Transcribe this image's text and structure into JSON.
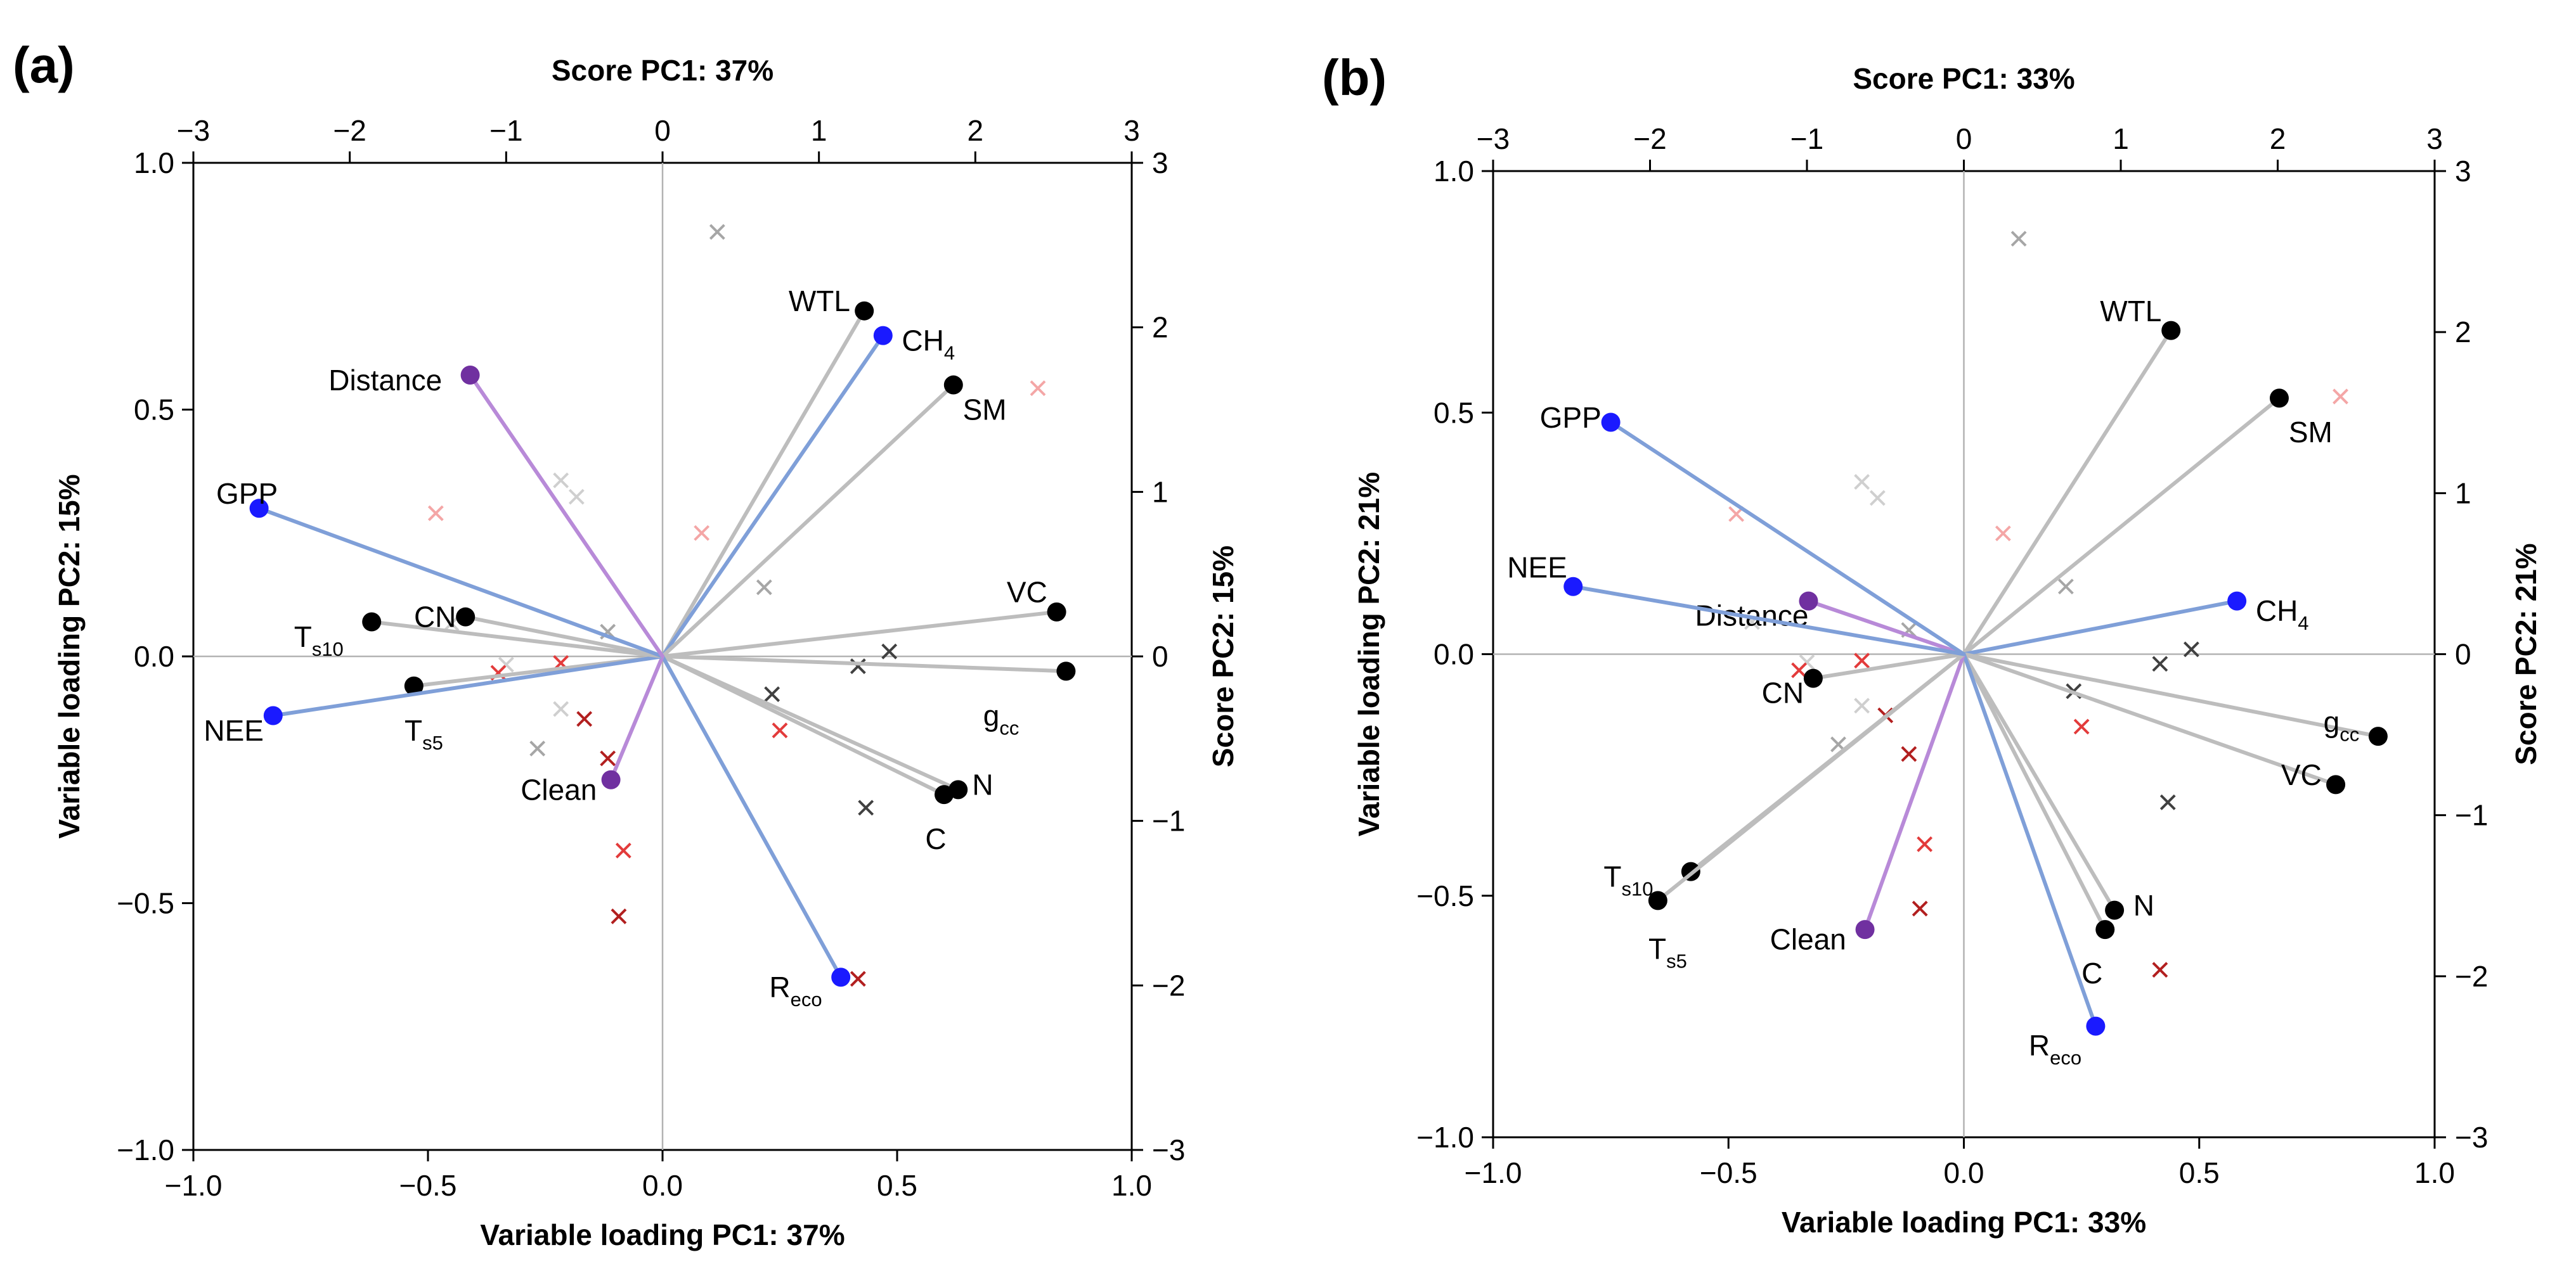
{
  "colors": {
    "env": "#bdbdbd",
    "flux": "#7f9fd8",
    "mgmt": "#b88ad8",
    "dot_env": "#000000",
    "dot_flux": "#1a1aff",
    "dot_mgmt": "#7030a0",
    "score_grey": "#a6a6a6",
    "score_black": "#404040",
    "score_pink": "#f4a6a6",
    "score_red": "#e33b3b",
    "score_darkred": "#b21f1f",
    "score_lightgrey": "#cfcfcf"
  },
  "chart_data": [
    {
      "type": "biplot",
      "panel_label": "(a)",
      "top_title": "Score PC1: 37%",
      "bottom_title": "Variable loading PC1: 37%",
      "left_title": "Variable loading PC2: 15%",
      "right_title": "Score PC2: 15%",
      "loading_xlim": [
        -1.0,
        1.0
      ],
      "loading_ylim": [
        -1.0,
        1.0
      ],
      "score_xlim": [
        -3,
        3
      ],
      "score_ylim": [
        -3,
        3
      ],
      "loading_ticks": [
        "−1.0",
        "−0.5",
        "0.0",
        "0.5",
        "1.0"
      ],
      "loading_tick_values": [
        -1.0,
        -0.5,
        0.0,
        0.5,
        1.0
      ],
      "score_ticks": [
        "−3",
        "−2",
        "−1",
        "0",
        "1",
        "2",
        "3"
      ],
      "score_tick_values": [
        -3,
        -2,
        -1,
        0,
        1,
        2,
        3
      ],
      "vectors": [
        {
          "label": "WTL",
          "sub": "",
          "x": 0.43,
          "y": 0.7,
          "group": "env",
          "anchor": "end",
          "lx": -0.03,
          "ly": 0.02
        },
        {
          "label": "CH",
          "sub": "4",
          "x": 0.47,
          "y": 0.65,
          "group": "flux",
          "anchor": "start",
          "lx": 0.04,
          "ly": -0.01
        },
        {
          "label": "SM",
          "sub": "",
          "x": 0.62,
          "y": 0.55,
          "group": "env",
          "anchor": "start",
          "lx": 0.02,
          "ly": -0.05
        },
        {
          "label": "VC",
          "sub": "",
          "x": 0.84,
          "y": 0.09,
          "group": "env",
          "anchor": "end",
          "lx": -0.02,
          "ly": 0.04
        },
        {
          "label": "g",
          "sub": "cc",
          "x": 0.86,
          "y": -0.03,
          "group": "env",
          "anchor": "end",
          "lx": -0.1,
          "ly": -0.09
        },
        {
          "label": "N",
          "sub": "",
          "x": 0.63,
          "y": -0.27,
          "group": "env",
          "anchor": "start",
          "lx": 0.03,
          "ly": 0.01
        },
        {
          "label": "C",
          "sub": "",
          "x": 0.6,
          "y": -0.28,
          "group": "env",
          "anchor": "start",
          "lx": -0.04,
          "ly": -0.09
        },
        {
          "label": "R",
          "sub": "eco",
          "x": 0.38,
          "y": -0.65,
          "group": "flux",
          "anchor": "end",
          "lx": -0.04,
          "ly": -0.02
        },
        {
          "label": "Clean",
          "sub": "",
          "x": -0.11,
          "y": -0.25,
          "group": "mgmt",
          "anchor": "end",
          "lx": -0.03,
          "ly": -0.02
        },
        {
          "label": "T",
          "sub": "s5",
          "x": -0.53,
          "y": -0.06,
          "group": "env",
          "anchor": "start",
          "lx": -0.02,
          "ly": -0.09
        },
        {
          "label": "NEE",
          "sub": "",
          "x": -0.83,
          "y": -0.12,
          "group": "flux",
          "anchor": "end",
          "lx": -0.02,
          "ly": -0.03
        },
        {
          "label": "T",
          "sub": "s10",
          "x": -0.62,
          "y": 0.07,
          "group": "env",
          "anchor": "end",
          "lx": -0.06,
          "ly": -0.03
        },
        {
          "label": "CN",
          "sub": "",
          "x": -0.42,
          "y": 0.08,
          "group": "env",
          "anchor": "end",
          "lx": -0.02,
          "ly": 0.0
        },
        {
          "label": "GPP",
          "sub": "",
          "x": -0.86,
          "y": 0.3,
          "group": "flux",
          "anchor": "end",
          "lx": 0.04,
          "ly": 0.03
        },
        {
          "label": "Distance",
          "sub": "",
          "x": -0.41,
          "y": 0.57,
          "group": "mgmt",
          "anchor": "end",
          "lx": -0.06,
          "ly": -0.01
        }
      ],
      "scores": [
        {
          "x": 0.35,
          "y": 2.58,
          "c": "score_grey"
        },
        {
          "x": -0.65,
          "y": 1.07,
          "c": "score_lightgrey"
        },
        {
          "x": -0.55,
          "y": 0.97,
          "c": "score_lightgrey"
        },
        {
          "x": -1.45,
          "y": 0.87,
          "c": "score_pink"
        },
        {
          "x": 0.25,
          "y": 0.75,
          "c": "score_pink"
        },
        {
          "x": 0.65,
          "y": 0.42,
          "c": "score_grey"
        },
        {
          "x": 2.4,
          "y": 1.63,
          "c": "score_pink"
        },
        {
          "x": -0.35,
          "y": 0.15,
          "c": "score_grey"
        },
        {
          "x": -1.35,
          "y": 0.2,
          "c": "score_lightgrey"
        },
        {
          "x": -1.0,
          "y": -0.05,
          "c": "score_lightgrey"
        },
        {
          "x": -1.05,
          "y": -0.1,
          "c": "score_red"
        },
        {
          "x": -0.65,
          "y": -0.32,
          "c": "score_lightgrey"
        },
        {
          "x": -0.65,
          "y": -0.04,
          "c": "score_red"
        },
        {
          "x": -0.8,
          "y": -0.56,
          "c": "score_grey"
        },
        {
          "x": -0.5,
          "y": -0.38,
          "c": "score_darkred"
        },
        {
          "x": -0.35,
          "y": -0.62,
          "c": "score_darkred"
        },
        {
          "x": 0.75,
          "y": -0.45,
          "c": "score_red"
        },
        {
          "x": 0.7,
          "y": -0.23,
          "c": "score_black"
        },
        {
          "x": 1.25,
          "y": -0.06,
          "c": "score_black"
        },
        {
          "x": 1.45,
          "y": 0.03,
          "c": "score_black"
        },
        {
          "x": 1.3,
          "y": -0.92,
          "c": "score_black"
        },
        {
          "x": -0.25,
          "y": -1.18,
          "c": "score_red"
        },
        {
          "x": -0.28,
          "y": -1.58,
          "c": "score_darkred"
        },
        {
          "x": 1.25,
          "y": -1.96,
          "c": "score_darkred"
        }
      ]
    },
    {
      "type": "biplot",
      "panel_label": "(b)",
      "top_title": "Score PC1: 33%",
      "bottom_title": "Variable loading PC1: 33%",
      "left_title": "Variable loading PC2: 21%",
      "right_title": "Score PC2: 21%",
      "loading_xlim": [
        -1.0,
        1.0
      ],
      "loading_ylim": [
        -1.0,
        1.0
      ],
      "score_xlim": [
        -3,
        3
      ],
      "score_ylim": [
        -3,
        3
      ],
      "loading_ticks": [
        "−1.0",
        "−0.5",
        "0.0",
        "0.5",
        "1.0"
      ],
      "loading_tick_values": [
        -1.0,
        -0.5,
        0.0,
        0.5,
        1.0
      ],
      "score_ticks": [
        "−3",
        "−2",
        "−1",
        "0",
        "1",
        "2",
        "3"
      ],
      "score_tick_values": [
        -3,
        -2,
        -1,
        0,
        1,
        2,
        3
      ],
      "vectors": [
        {
          "label": "WTL",
          "sub": "",
          "x": 0.44,
          "y": 0.67,
          "group": "env",
          "anchor": "end",
          "lx": -0.02,
          "ly": 0.04
        },
        {
          "label": "SM",
          "sub": "",
          "x": 0.67,
          "y": 0.53,
          "group": "env",
          "anchor": "start",
          "lx": 0.02,
          "ly": -0.07
        },
        {
          "label": "CH",
          "sub": "4",
          "x": 0.58,
          "y": 0.11,
          "group": "flux",
          "anchor": "start",
          "lx": 0.04,
          "ly": -0.02
        },
        {
          "label": "g",
          "sub": "cc",
          "x": 0.88,
          "y": -0.17,
          "group": "env",
          "anchor": "end",
          "lx": -0.04,
          "ly": 0.03
        },
        {
          "label": "VC",
          "sub": "",
          "x": 0.79,
          "y": -0.27,
          "group": "env",
          "anchor": "end",
          "lx": -0.03,
          "ly": 0.02
        },
        {
          "label": "N",
          "sub": "",
          "x": 0.32,
          "y": -0.53,
          "group": "env",
          "anchor": "start",
          "lx": 0.04,
          "ly": 0.01
        },
        {
          "label": "C",
          "sub": "",
          "x": 0.3,
          "y": -0.57,
          "group": "env",
          "anchor": "start",
          "lx": -0.05,
          "ly": -0.09
        },
        {
          "label": "R",
          "sub": "eco",
          "x": 0.28,
          "y": -0.77,
          "group": "flux",
          "anchor": "end",
          "lx": -0.03,
          "ly": -0.04
        },
        {
          "label": "Clean",
          "sub": "",
          "x": -0.21,
          "y": -0.57,
          "group": "mgmt",
          "anchor": "end",
          "lx": -0.04,
          "ly": -0.02
        },
        {
          "label": "T",
          "sub": "s10",
          "x": -0.58,
          "y": -0.45,
          "group": "env",
          "anchor": "end",
          "lx": -0.08,
          "ly": -0.01
        },
        {
          "label": "T",
          "sub": "s5",
          "x": -0.65,
          "y": -0.51,
          "group": "env",
          "anchor": "start",
          "lx": -0.02,
          "ly": -0.1
        },
        {
          "label": "CN",
          "sub": "",
          "x": -0.32,
          "y": -0.05,
          "group": "env",
          "anchor": "end",
          "lx": -0.02,
          "ly": -0.03
        },
        {
          "label": "Distance",
          "sub": "",
          "x": -0.33,
          "y": 0.11,
          "group": "mgmt",
          "anchor": "end",
          "lx": 0.0,
          "ly": -0.03
        },
        {
          "label": "NEE",
          "sub": "",
          "x": -0.83,
          "y": 0.14,
          "group": "flux",
          "anchor": "start",
          "lx": -0.14,
          "ly": 0.04
        },
        {
          "label": "GPP",
          "sub": "",
          "x": -0.75,
          "y": 0.48,
          "group": "flux",
          "anchor": "end",
          "lx": -0.02,
          "ly": 0.01
        }
      ],
      "scores": [
        {
          "x": 0.35,
          "y": 2.58,
          "c": "score_grey"
        },
        {
          "x": -0.65,
          "y": 1.07,
          "c": "score_lightgrey"
        },
        {
          "x": -0.55,
          "y": 0.97,
          "c": "score_lightgrey"
        },
        {
          "x": -1.45,
          "y": 0.87,
          "c": "score_pink"
        },
        {
          "x": 0.25,
          "y": 0.75,
          "c": "score_pink"
        },
        {
          "x": 0.65,
          "y": 0.42,
          "c": "score_grey"
        },
        {
          "x": 2.4,
          "y": 1.6,
          "c": "score_pink"
        },
        {
          "x": -0.35,
          "y": 0.15,
          "c": "score_grey"
        },
        {
          "x": -1.35,
          "y": 0.2,
          "c": "score_lightgrey"
        },
        {
          "x": -1.0,
          "y": -0.05,
          "c": "score_lightgrey"
        },
        {
          "x": -1.05,
          "y": -0.1,
          "c": "score_red"
        },
        {
          "x": -0.65,
          "y": -0.32,
          "c": "score_lightgrey"
        },
        {
          "x": -0.65,
          "y": -0.04,
          "c": "score_red"
        },
        {
          "x": -0.8,
          "y": -0.56,
          "c": "score_grey"
        },
        {
          "x": -0.5,
          "y": -0.38,
          "c": "score_darkred"
        },
        {
          "x": -0.35,
          "y": -0.62,
          "c": "score_darkred"
        },
        {
          "x": 0.75,
          "y": -0.45,
          "c": "score_red"
        },
        {
          "x": 0.7,
          "y": -0.23,
          "c": "score_black"
        },
        {
          "x": 1.25,
          "y": -0.06,
          "c": "score_black"
        },
        {
          "x": 1.45,
          "y": 0.03,
          "c": "score_black"
        },
        {
          "x": 1.3,
          "y": -0.92,
          "c": "score_black"
        },
        {
          "x": -0.25,
          "y": -1.18,
          "c": "score_red"
        },
        {
          "x": -0.28,
          "y": -1.58,
          "c": "score_darkred"
        },
        {
          "x": 1.25,
          "y": -1.96,
          "c": "score_darkred"
        }
      ]
    }
  ]
}
